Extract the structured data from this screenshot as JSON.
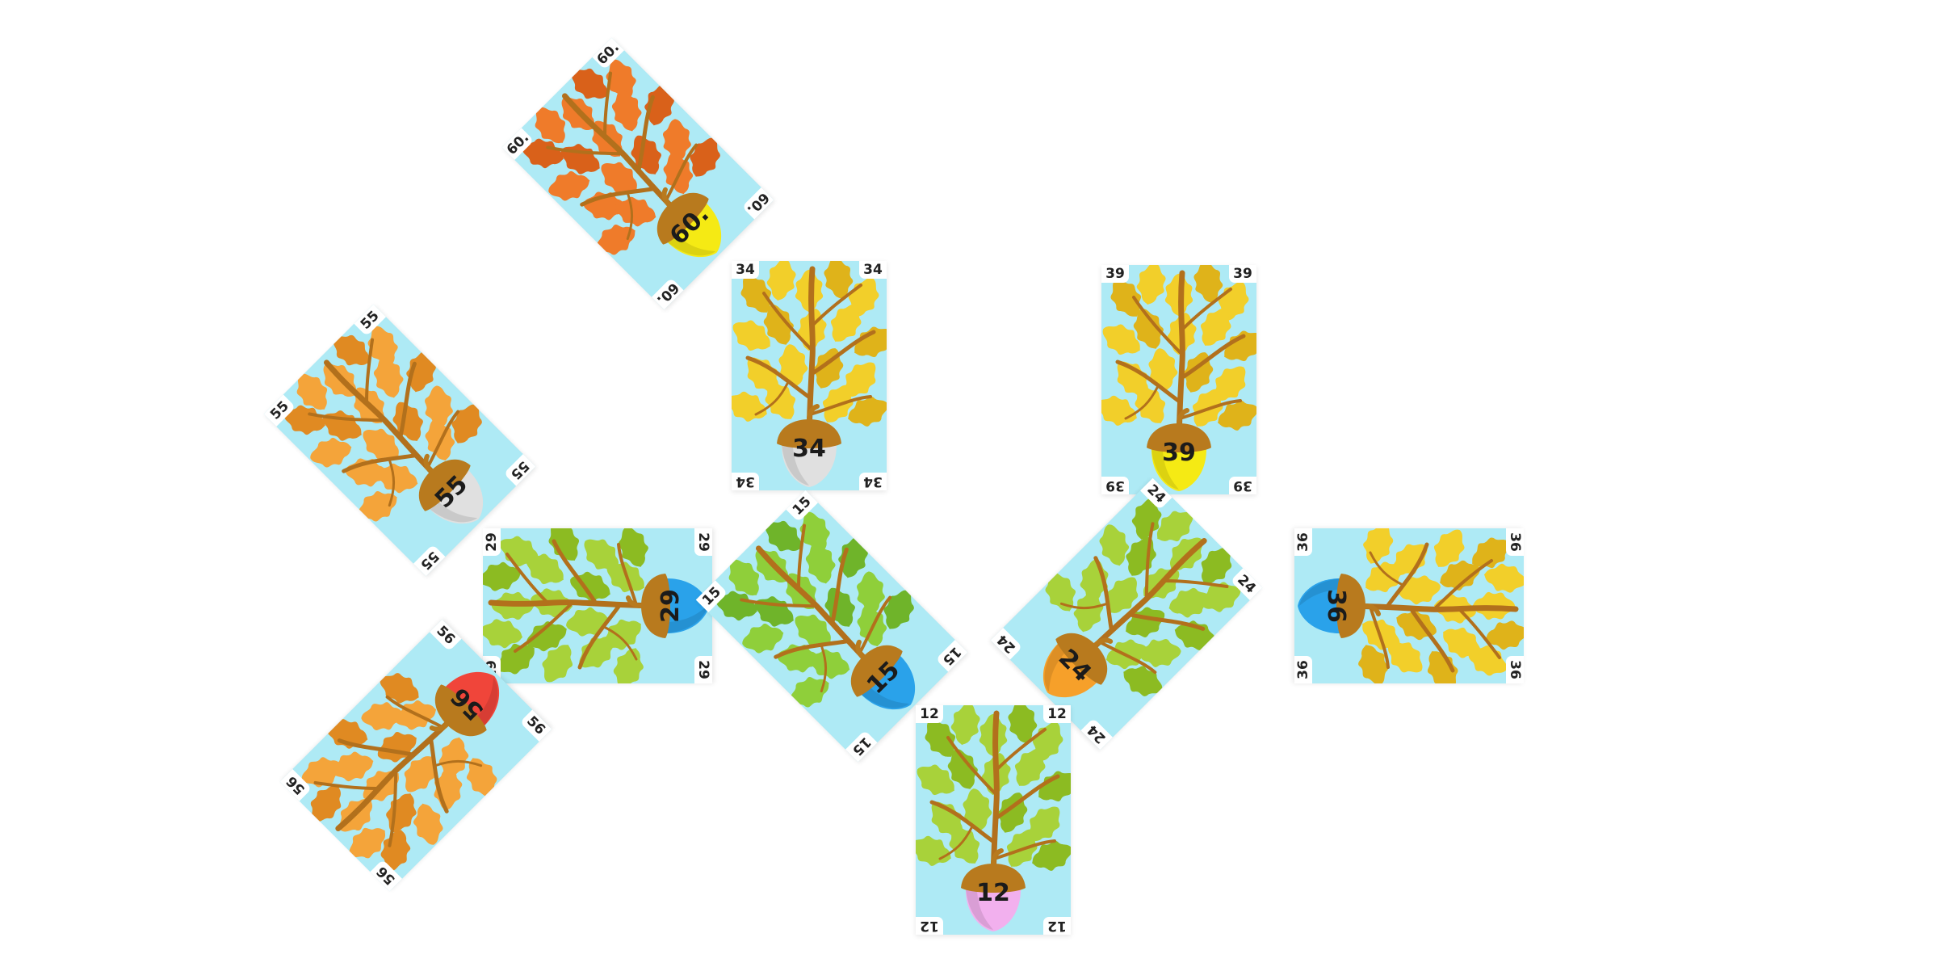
{
  "game": {
    "title": "",
    "cards": [
      {
        "id": "card-60",
        "number": "60.",
        "acorn_color": "#f5ea14",
        "leaf_color": "#ef7b2a",
        "leaf_dark": "#d9611a"
      },
      {
        "id": "card-34",
        "number": "34",
        "acorn_color": "#e0e0e0",
        "leaf_color": "#f2cf2a",
        "leaf_dark": "#dfb31a"
      },
      {
        "id": "card-39",
        "number": "39",
        "acorn_color": "#f5ea14",
        "leaf_color": "#f2cf2a",
        "leaf_dark": "#dfb31a"
      },
      {
        "id": "card-55",
        "number": "55",
        "acorn_color": "#e0e0e0",
        "leaf_color": "#f4a43a",
        "leaf_dark": "#e08a22"
      },
      {
        "id": "card-29",
        "number": "29",
        "acorn_color": "#2aa2ea",
        "leaf_color": "#a8d23a",
        "leaf_dark": "#8cbb22"
      },
      {
        "id": "card-15",
        "number": "15",
        "acorn_color": "#2aa2ea",
        "leaf_color": "#8fcf3a",
        "leaf_dark": "#6fb42a"
      },
      {
        "id": "card-24",
        "number": "24",
        "acorn_color": "#f6a02a",
        "leaf_color": "#a8d23a",
        "leaf_dark": "#8cbb22"
      },
      {
        "id": "card-36",
        "number": "36",
        "acorn_color": "#2aa2ea",
        "leaf_color": "#f2cf2a",
        "leaf_dark": "#dfb31a"
      },
      {
        "id": "card-56",
        "number": "56",
        "acorn_color": "#f0453a",
        "leaf_color": "#f4a43a",
        "leaf_dark": "#e08a22"
      },
      {
        "id": "card-12",
        "number": "12",
        "acorn_color": "#f2b0ee",
        "leaf_color": "#a8d23a",
        "leaf_dark": "#8cbb22"
      }
    ]
  },
  "colors": {
    "card_bg": "#aeeaf5",
    "branch": "#b2701c",
    "acorn_cap": "#b87a1e",
    "background": "#ffffff"
  }
}
